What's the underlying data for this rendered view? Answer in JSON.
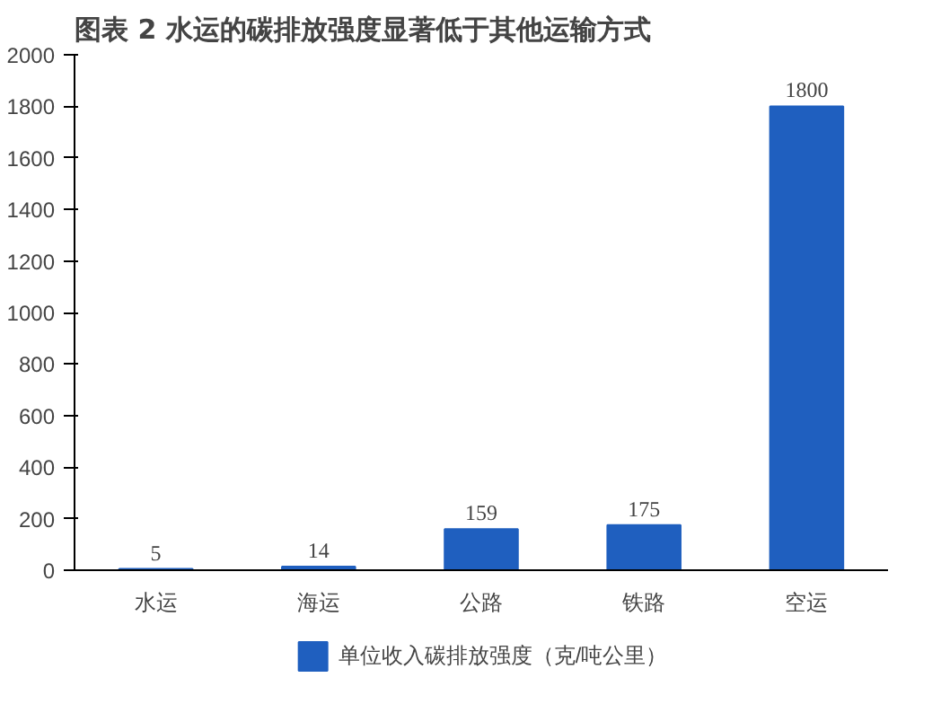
{
  "chart_data": {
    "type": "bar",
    "title": "图表 2  水运的碳排放强度显著低于其他运输方式",
    "categories": [
      "水运",
      "海运",
      "公路",
      "铁路",
      "空运"
    ],
    "series": [
      {
        "name": "单位收入碳排放强度（克/吨公里）",
        "color": "#1f5fbf",
        "values": [
          5,
          14,
          159,
          175,
          1800
        ]
      }
    ],
    "ylim": [
      0,
      2000
    ],
    "yticks": [
      0,
      200,
      400,
      600,
      800,
      1000,
      1200,
      1400,
      1600,
      1800,
      2000
    ],
    "data_labels": true,
    "grid": false,
    "legend": "bottom"
  }
}
